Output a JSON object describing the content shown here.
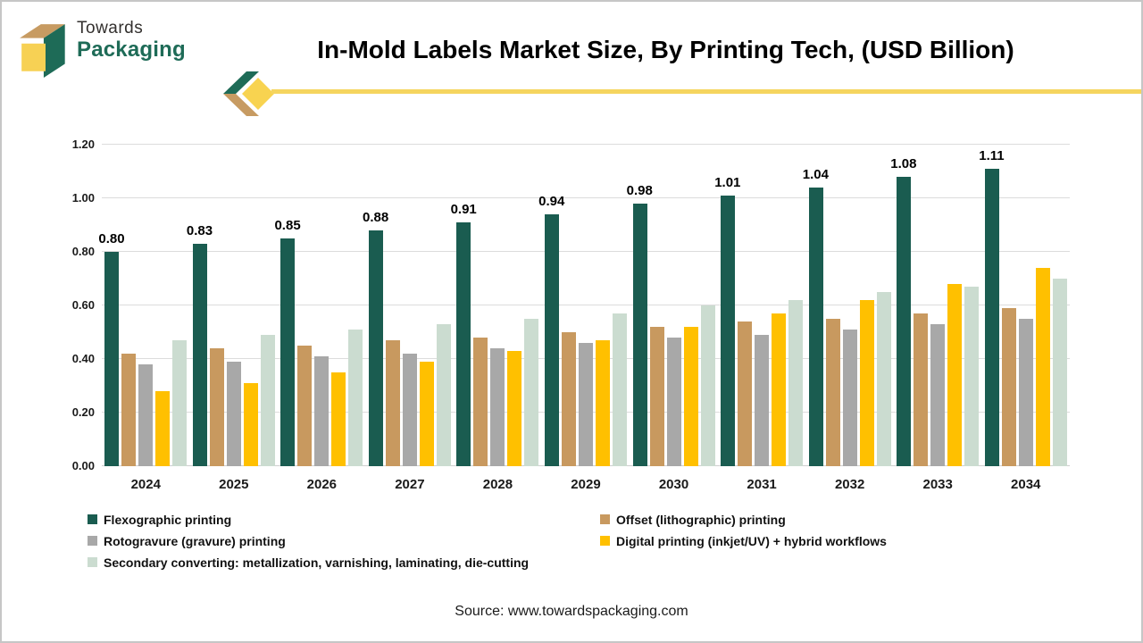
{
  "brand": {
    "line1": "Towards",
    "line2": "Packaging"
  },
  "header": {
    "title": "In-Mold Labels Market Size, By Printing Tech, (USD Billion)"
  },
  "footer": {
    "source": "Source: www.towardspackaging.com"
  },
  "colors": {
    "flexographic": "#1A5C50",
    "offset": "#C8995F",
    "rotogravure": "#A8A8A8",
    "digital": "#FFC000",
    "secondary": "#CBDCD0",
    "gridline": "#DCDCDC",
    "accent_line": "#F5D55F",
    "brand_teal": "#1E6B57",
    "brand_tan": "#C79B62",
    "brand_yellow": "#F7D154"
  },
  "chart_data": {
    "type": "bar",
    "title": "In-Mold Labels Market Size, By Printing Tech, (USD Billion)",
    "categories": [
      "2024",
      "2025",
      "2026",
      "2027",
      "2028",
      "2029",
      "2030",
      "2031",
      "2032",
      "2033",
      "2034"
    ],
    "series": [
      {
        "name": "Flexographic printing",
        "color": "#1A5C50",
        "values": [
          0.8,
          0.83,
          0.85,
          0.88,
          0.91,
          0.94,
          0.98,
          1.01,
          1.04,
          1.08,
          1.11
        ]
      },
      {
        "name": "Offset (lithographic) printing",
        "color": "#C8995F",
        "values": [
          0.42,
          0.44,
          0.45,
          0.47,
          0.48,
          0.5,
          0.52,
          0.54,
          0.55,
          0.57,
          0.59
        ]
      },
      {
        "name": "Rotogravure (gravure) printing",
        "color": "#A8A8A8",
        "values": [
          0.38,
          0.39,
          0.41,
          0.42,
          0.44,
          0.46,
          0.48,
          0.49,
          0.51,
          0.53,
          0.55
        ]
      },
      {
        "name": "Digital printing (inkjet/UV) + hybrid workflows",
        "color": "#FFC000",
        "values": [
          0.28,
          0.31,
          0.35,
          0.39,
          0.43,
          0.47,
          0.52,
          0.57,
          0.62,
          0.68,
          0.74
        ]
      },
      {
        "name": "Secondary converting: metallization, varnishing, laminating, die-cutting",
        "color": "#CBDCD0",
        "values": [
          0.47,
          0.49,
          0.51,
          0.53,
          0.55,
          0.57,
          0.6,
          0.62,
          0.65,
          0.67,
          0.7
        ]
      }
    ],
    "value_labels_series": "Flexographic printing",
    "value_labels": [
      "0.80",
      "0.83",
      "0.85",
      "0.88",
      "0.91",
      "0.94",
      "0.98",
      "1.01",
      "1.04",
      "1.08",
      "1.11"
    ],
    "ylim": [
      0,
      1.2
    ],
    "yticks": [
      "0.00",
      "0.20",
      "0.40",
      "0.60",
      "0.80",
      "1.00",
      "1.20"
    ],
    "grid": true,
    "legend_position": "bottom",
    "legend_columns": [
      [
        0,
        2,
        4
      ],
      [
        1,
        3
      ]
    ]
  }
}
